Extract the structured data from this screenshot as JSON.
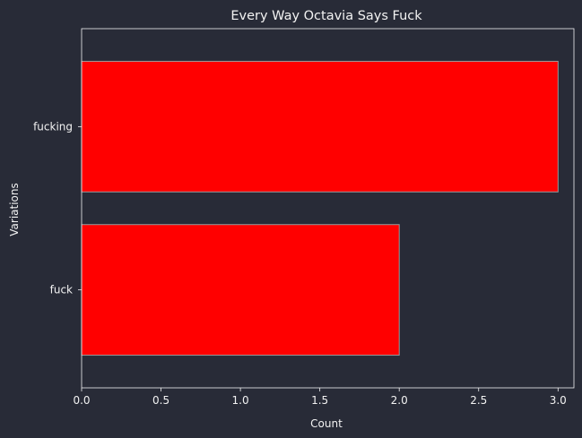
{
  "colors": {
    "background": "#282b37",
    "axes_background": "#282b37",
    "text": "#f2f2f2",
    "spine": "#f2f2f2",
    "bar_fill": "#ff0000",
    "bar_edge": "#9a9a9a"
  },
  "chart_data": {
    "type": "bar",
    "orientation": "horizontal",
    "title": "Every Way Octavia Says Fuck",
    "xlabel": "Count",
    "ylabel": "Variations",
    "categories": [
      "fuck",
      "fucking"
    ],
    "values": [
      2,
      3
    ],
    "xlim": [
      0,
      3.1
    ],
    "xticks": [
      "0.0",
      "0.5",
      "1.0",
      "1.5",
      "2.0",
      "2.5",
      "3.0"
    ],
    "grid": false,
    "legend": "none"
  }
}
